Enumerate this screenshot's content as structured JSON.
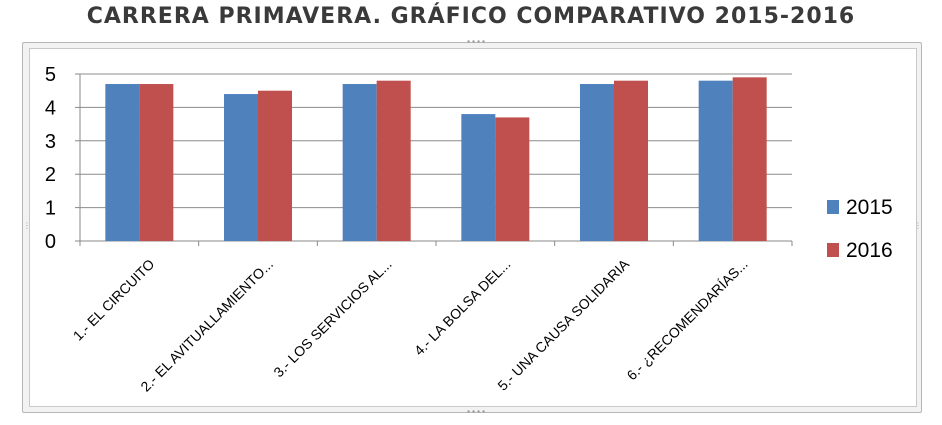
{
  "chart_title": "CARRERA PRIMAVERA. GRÁFICO COMPARATIVO 2015-2016",
  "chart_data": {
    "type": "bar",
    "title": "CARRERA PRIMAVERA. GRÁFICO COMPARATIVO 2015-2016",
    "xlabel": "",
    "ylabel": "",
    "categories": [
      "1.- EL CIRCUITO",
      "2.- EL AVITUALLAMIENTO...",
      "3.- LOS SERVICIOS AL...",
      "4.- LA BOLSA DEL...",
      "5.- UNA CAUSA SOLIDARIA",
      "6.- ¿RECOMENDARÍAS..."
    ],
    "series": [
      {
        "name": "2015",
        "color": "#4f81bd",
        "values": [
          4.7,
          4.4,
          4.7,
          3.8,
          4.7,
          4.8
        ]
      },
      {
        "name": "2016",
        "color": "#c0504d",
        "values": [
          4.7,
          4.5,
          4.8,
          3.7,
          4.8,
          4.9
        ]
      }
    ],
    "ylim": [
      0,
      5
    ],
    "yticks": [
      "0",
      "1",
      "2",
      "3",
      "4",
      "5"
    ],
    "grid": true,
    "legend_position": "right"
  }
}
